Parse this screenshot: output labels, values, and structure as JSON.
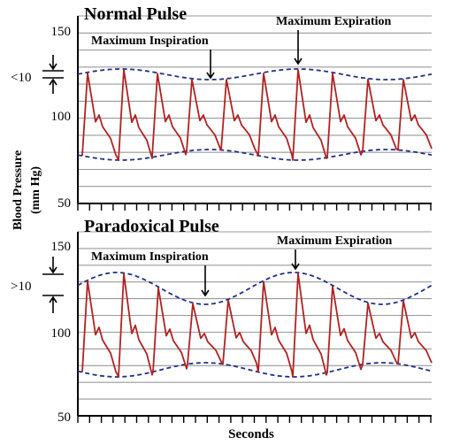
{
  "colors": {
    "wave": "#b22222",
    "envelope": "#1f2f8f",
    "grid": "#9a9a9a"
  },
  "y_axis_label_line1": "Blood Pressure",
  "y_axis_label_line2": "(mm Hg)",
  "x_axis_label": "Seconds",
  "panels": [
    {
      "title": "Normal Pulse",
      "inspiration_label": "Maximum Inspiration",
      "expiration_label": "Maximum Expiration",
      "difference_label": "<10",
      "y_ticks": [
        "150",
        "100",
        "50"
      ]
    },
    {
      "title": "Paradoxical Pulse",
      "inspiration_label": "Maximum Inspiration",
      "expiration_label": "Maximum Expiration",
      "difference_label": ">10",
      "y_ticks": [
        "150",
        "100",
        "50"
      ]
    }
  ]
}
